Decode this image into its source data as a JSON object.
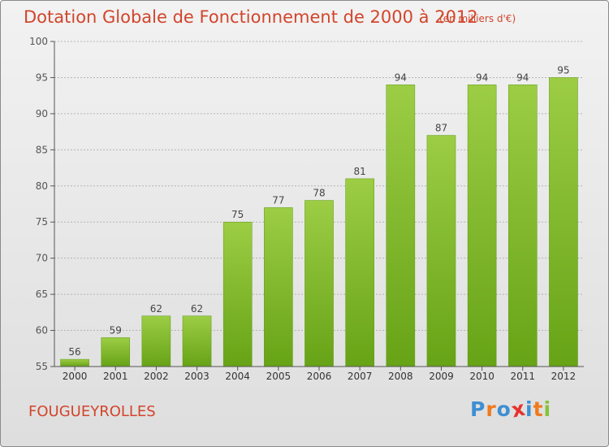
{
  "header": {
    "title": "Dotation Globale de Fonctionnement de 2000 à 2012",
    "unit": "(en milliers d'€)"
  },
  "footer": {
    "commune": "FOUGUEYROLLES",
    "logo_letters": [
      {
        "ch": "P",
        "color": "#3f8fd2"
      },
      {
        "ch": "r",
        "color": "#f07a1e"
      },
      {
        "ch": "o",
        "color": "#3f8fd2"
      },
      {
        "ch": "x",
        "color": "#e6322d"
      },
      {
        "ch": "i",
        "color": "#3f8fd2"
      },
      {
        "ch": "t",
        "color": "#f07a1e"
      },
      {
        "ch": "i",
        "color": "#86c335"
      }
    ]
  },
  "colors": {
    "bar_top": "#9ccd45",
    "bar_bottom": "#67a316",
    "text_accent": "#d2452b",
    "grid": "#b4b4b4",
    "axis": "#555555"
  },
  "chart_data": {
    "type": "bar",
    "categories": [
      "2000",
      "2001",
      "2002",
      "2003",
      "2004",
      "2005",
      "2006",
      "2007",
      "2008",
      "2009",
      "2010",
      "2011",
      "2012"
    ],
    "values": [
      56,
      59,
      62,
      62,
      75,
      77,
      78,
      81,
      94,
      87,
      94,
      94,
      95
    ],
    "ylim": [
      55,
      100
    ],
    "yticks": [
      55,
      60,
      65,
      70,
      75,
      80,
      85,
      90,
      95,
      100
    ],
    "grid": true
  }
}
